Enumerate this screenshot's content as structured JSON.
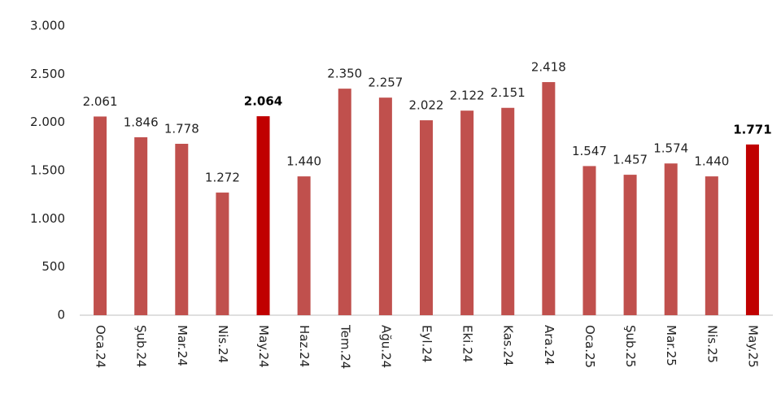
{
  "chart_data": {
    "type": "bar",
    "categories": [
      "Oca.24",
      "Şub.24",
      "Mar.24",
      "Nis.24",
      "May.24",
      "Haz.24",
      "Tem.24",
      "Ağu.24",
      "Eyl.24",
      "Eki.24",
      "Kas.24",
      "Ara.24",
      "Oca.25",
      "Şub.25",
      "Mar.25",
      "Nis.25",
      "May.25"
    ],
    "values": [
      2061,
      1846,
      1778,
      1272,
      2064,
      1440,
      2350,
      2257,
      2022,
      2122,
      2151,
      2418,
      1547,
      1457,
      1574,
      1440,
      1771
    ],
    "value_labels": [
      "2.061",
      "1.846",
      "1.778",
      "1.272",
      "2.064",
      "1.440",
      "2.350",
      "2.257",
      "2.022",
      "2.122",
      "2.151",
      "2.418",
      "1.547",
      "1.457",
      "1.574",
      "1.440",
      "1.771"
    ],
    "colors": [
      "#c0504d",
      "#c0504d",
      "#c0504d",
      "#c0504d",
      "#c00000",
      "#c0504d",
      "#c0504d",
      "#c0504d",
      "#c0504d",
      "#c0504d",
      "#c0504d",
      "#c0504d",
      "#c0504d",
      "#c0504d",
      "#c0504d",
      "#c0504d",
      "#c00000"
    ],
    "highlight_color": "#c00000",
    "ylim": [
      0,
      3000
    ],
    "yticks": [
      0,
      500,
      {
        "value": 1000,
        "label": "1.000"
      },
      {
        "value": 1500,
        "label": "1.500"
      },
      {
        "value": 2000,
        "label": "2.000"
      },
      {
        "value": 2500,
        "label": "2.500"
      },
      {
        "value": 3000,
        "label": "3.000"
      }
    ],
    "grid": false
  }
}
